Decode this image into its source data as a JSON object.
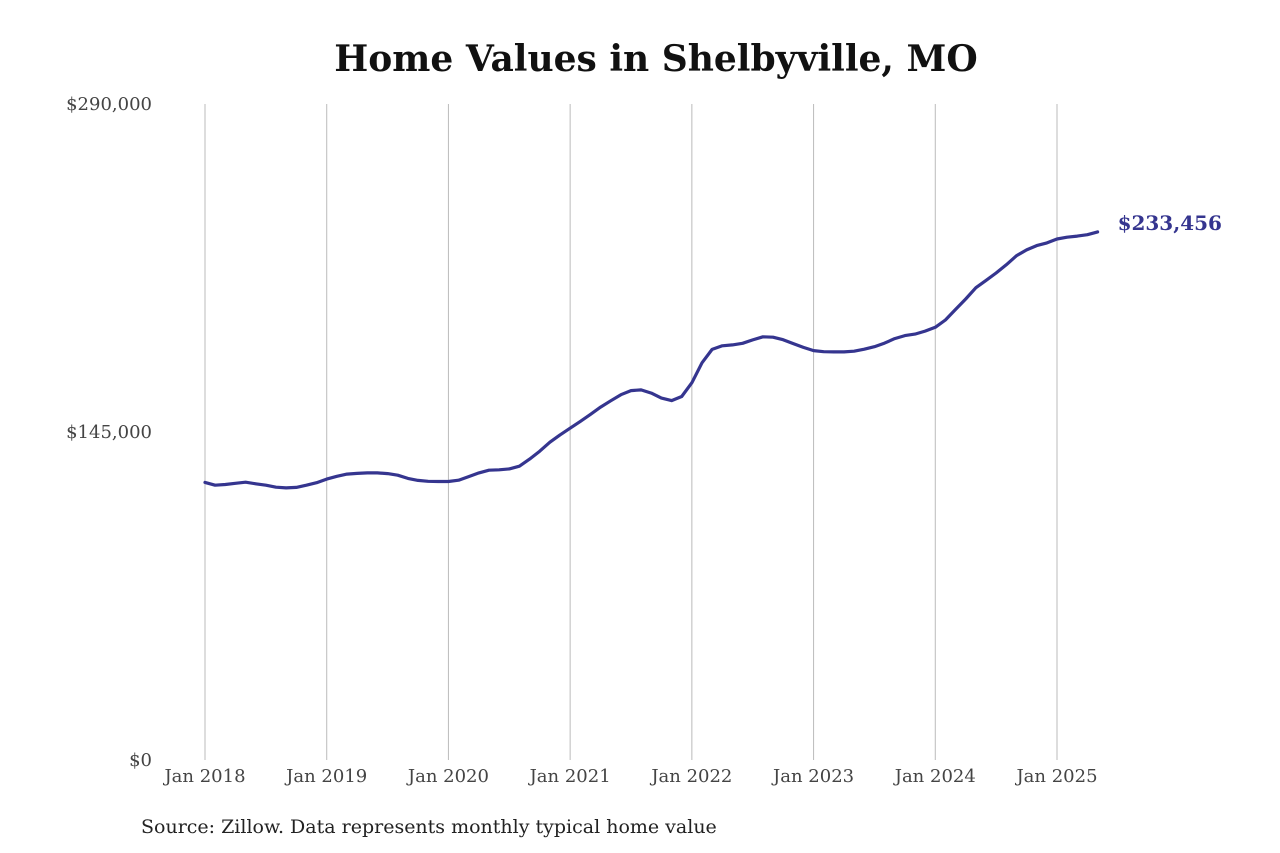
{
  "chart_data": {
    "type": "line",
    "title": "Home Values in Shelbyville, MO",
    "source": "Source: Zillow. Data represents monthly typical home value",
    "xlabel": "",
    "ylabel": "",
    "ylim": [
      0,
      290000
    ],
    "y_ticks": [
      {
        "value": 0,
        "label": "$0"
      },
      {
        "value": 145000,
        "label": "$145,000"
      },
      {
        "value": 290000,
        "label": "$290,000"
      }
    ],
    "x_ticks": [
      {
        "value": "2018-01",
        "label": "Jan 2018"
      },
      {
        "value": "2019-01",
        "label": "Jan 2019"
      },
      {
        "value": "2020-01",
        "label": "Jan 2020"
      },
      {
        "value": "2021-01",
        "label": "Jan 2021"
      },
      {
        "value": "2022-01",
        "label": "Jan 2022"
      },
      {
        "value": "2023-01",
        "label": "Jan 2023"
      },
      {
        "value": "2024-01",
        "label": "Jan 2024"
      },
      {
        "value": "2025-01",
        "label": "Jan 2025"
      }
    ],
    "grid": {
      "vertical": true,
      "horizontal": false
    },
    "line_color": "#35358f",
    "grid_color": "#bbbbbb",
    "end_label": "$233,456",
    "series": [
      {
        "x": [
          "2018-01",
          "2018-02",
          "2018-03",
          "2018-04",
          "2018-05",
          "2018-06",
          "2018-07",
          "2018-08",
          "2018-09",
          "2018-10",
          "2018-11",
          "2018-12",
          "2019-01",
          "2019-02",
          "2019-03",
          "2019-04",
          "2019-05",
          "2019-06",
          "2019-07",
          "2019-08",
          "2019-09",
          "2019-10",
          "2019-11",
          "2019-12",
          "2020-01",
          "2020-02",
          "2020-03",
          "2020-04",
          "2020-05",
          "2020-06",
          "2020-07",
          "2020-08",
          "2020-09",
          "2020-10",
          "2020-11",
          "2020-12",
          "2021-01",
          "2021-02",
          "2021-03",
          "2021-04",
          "2021-05",
          "2021-06",
          "2021-07",
          "2021-08",
          "2021-09",
          "2021-10",
          "2021-11",
          "2021-12",
          "2022-01",
          "2022-02",
          "2022-03",
          "2022-04",
          "2022-05",
          "2022-06",
          "2022-07",
          "2022-08",
          "2022-09",
          "2022-10",
          "2022-11",
          "2022-12",
          "2023-01",
          "2023-02",
          "2023-03",
          "2023-04",
          "2023-05",
          "2023-06",
          "2023-07",
          "2023-08",
          "2023-09",
          "2023-10",
          "2023-11",
          "2023-12",
          "2024-01",
          "2024-02",
          "2024-03",
          "2024-04",
          "2024-05",
          "2024-06",
          "2024-07",
          "2024-08",
          "2024-09",
          "2024-10",
          "2024-11",
          "2024-12",
          "2025-01",
          "2025-02",
          "2025-03",
          "2025-04",
          "2025-05"
        ],
        "values": [
          122700,
          121500,
          121800,
          122300,
          122800,
          122100,
          121500,
          120600,
          120300,
          120500,
          121500,
          122600,
          124200,
          125400,
          126400,
          126700,
          126900,
          126900,
          126600,
          125900,
          124500,
          123600,
          123200,
          123100,
          123100,
          123700,
          125300,
          126900,
          128100,
          128300,
          128700,
          129900,
          133000,
          136500,
          140500,
          143700,
          146700,
          149700,
          152800,
          156000,
          158800,
          161500,
          163300,
          163600,
          162200,
          160000,
          158900,
          160700,
          166800,
          175600,
          181500,
          183100,
          183500,
          184200,
          185700,
          187100,
          186900,
          185800,
          184100,
          182400,
          181000,
          180500,
          180400,
          180400,
          180700,
          181600,
          182700,
          184300,
          186300,
          187600,
          188300,
          189600,
          191300,
          194500,
          199200,
          203800,
          208800,
          212000,
          215300,
          218900,
          222900,
          225500,
          227400,
          228600,
          230300,
          231100,
          231600,
          232200,
          233456
        ]
      }
    ]
  }
}
